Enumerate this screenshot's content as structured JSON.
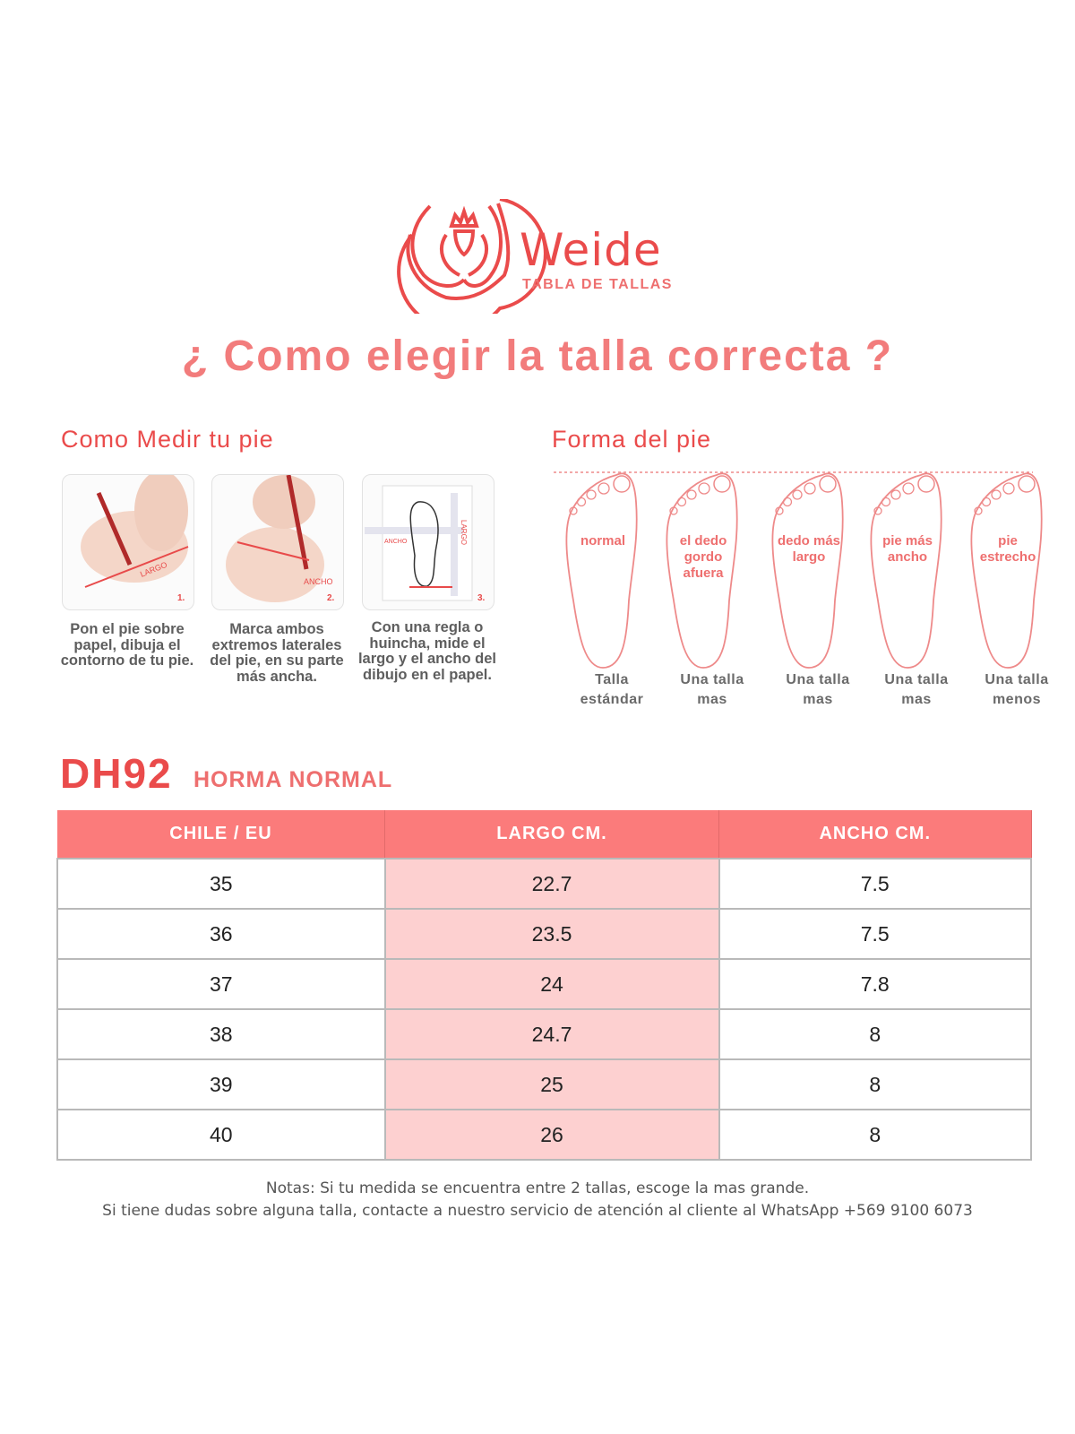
{
  "brand": {
    "name": "Weide",
    "subtitle": "TABLA DE TALLAS",
    "color": "#ea4b4b"
  },
  "headline": "¿ Como elegir la talla correcta ?",
  "measure": {
    "title": "Como Medir tu pie",
    "steps": [
      {
        "number": "1.",
        "tag": "LARGO",
        "caption": "Pon el pie sobre papel, dibuja el contorno de tu pie."
      },
      {
        "number": "2.",
        "tag": "ANCHO",
        "caption": "Marca ambos extremos laterales del pie, en su parte más ancha."
      },
      {
        "number": "3.",
        "tag": "ANCHO",
        "tag2": "LARGO",
        "caption": "Con una regla o huincha, mide el largo y el ancho del dibujo en el papel."
      }
    ]
  },
  "shape": {
    "title": "Forma del pie",
    "feet": [
      {
        "label1": "normal",
        "label2": "",
        "label3": "",
        "size1": "Talla",
        "size2": "estándar"
      },
      {
        "label1": "el dedo",
        "label2": "gordo",
        "label3": "afuera",
        "size1": "Una talla",
        "size2": "mas"
      },
      {
        "label1": "dedo más",
        "label2": "largo",
        "label3": "",
        "size1": "Una talla",
        "size2": "mas"
      },
      {
        "label1": "pie más",
        "label2": "ancho",
        "label3": "",
        "size1": "Una talla",
        "size2": "mas"
      },
      {
        "label1": "pie",
        "label2": "estrecho",
        "label3": "",
        "size1": "Una talla",
        "size2": "menos"
      }
    ]
  },
  "model": {
    "code": "DH92",
    "last": "HORMA NORMAL"
  },
  "table": {
    "headers": [
      "CHILE / EU",
      "LARGO CM.",
      "ANCHO CM."
    ],
    "rows": [
      [
        "35",
        "22.7",
        "7.5"
      ],
      [
        "36",
        "23.5",
        "7.5"
      ],
      [
        "37",
        "24",
        "7.8"
      ],
      [
        "38",
        "24.7",
        "8"
      ],
      [
        "39",
        "25",
        "8"
      ],
      [
        "40",
        "26",
        "8"
      ]
    ],
    "header_color": "#fb7b7b",
    "highlight_color": "#fdd0d0"
  },
  "notes": [
    "Notas: Si tu medida se encuentra entre 2 tallas, escoge la mas grande.",
    "Si tiene dudas sobre alguna talla, contacte a nuestro servicio de atención al cliente al WhatsApp +569 9100 6073"
  ]
}
